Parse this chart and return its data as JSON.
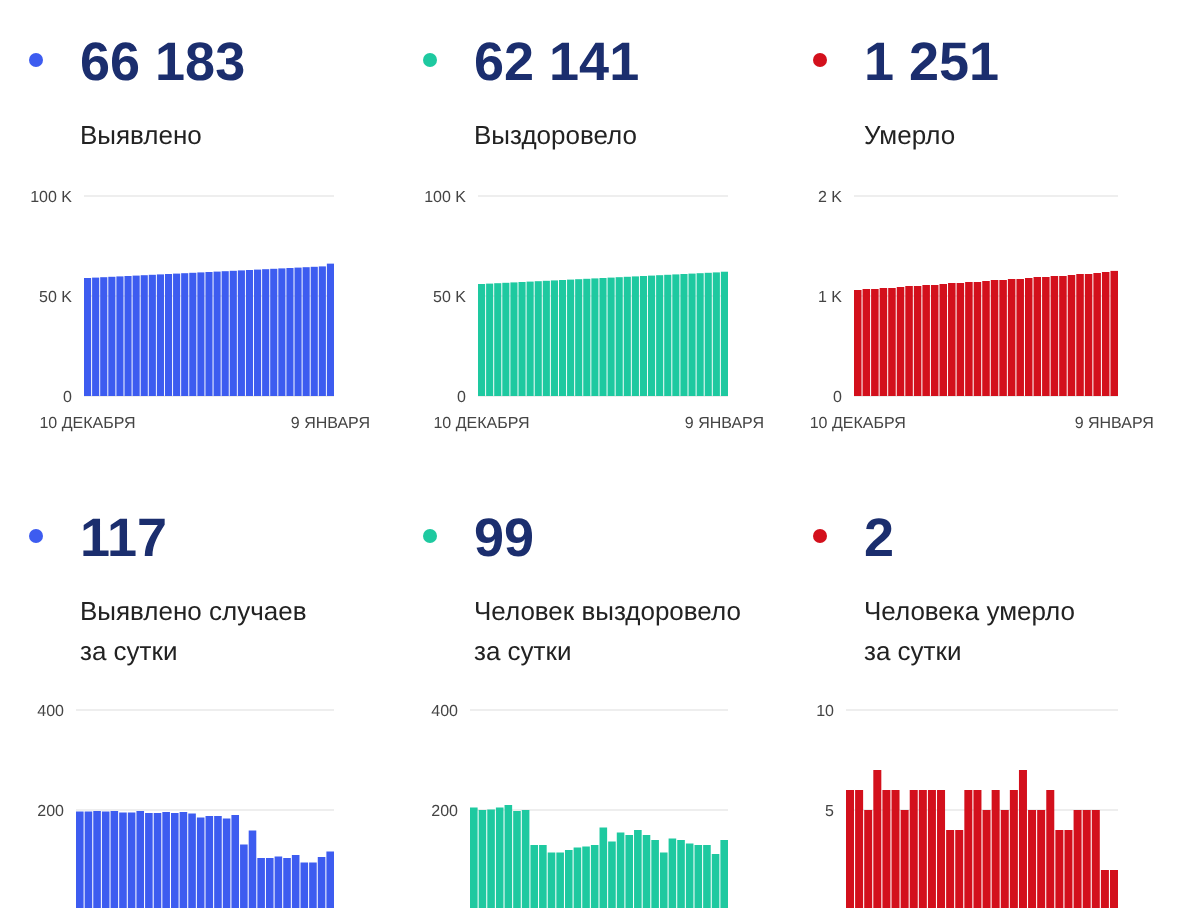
{
  "chart_data": [
    {
      "type": "bar",
      "title": "66 183",
      "subtitle": "Выявлено",
      "categories": [
        "10 ДЕКАБРЯ",
        null,
        null,
        null,
        null,
        null,
        null,
        null,
        null,
        null,
        null,
        null,
        null,
        null,
        null,
        null,
        null,
        null,
        null,
        null,
        null,
        null,
        null,
        null,
        null,
        null,
        null,
        null,
        null,
        null,
        "9 ЯНВАРЯ"
      ],
      "values": [
        59000,
        59200,
        59400,
        59600,
        59800,
        60000,
        60200,
        60400,
        60600,
        60800,
        61000,
        61200,
        61400,
        61600,
        61800,
        62000,
        62200,
        62400,
        62600,
        62800,
        63000,
        63200,
        63400,
        63600,
        63800,
        64000,
        64200,
        64400,
        64600,
        64800,
        66183
      ],
      "color": "#3d5cf0",
      "ylim": [
        0,
        100000
      ],
      "yticks": [
        0,
        {
          "value": 50000,
          "label": "50 K"
        },
        {
          "value": 100000,
          "label": "100 K"
        }
      ],
      "grid": "y"
    },
    {
      "type": "bar",
      "title": "62 141",
      "subtitle": "Выздоровело",
      "categories": [
        "10 ДЕКАБРЯ",
        null,
        null,
        null,
        null,
        null,
        null,
        null,
        null,
        null,
        null,
        null,
        null,
        null,
        null,
        null,
        null,
        null,
        null,
        null,
        null,
        null,
        null,
        null,
        null,
        null,
        null,
        null,
        null,
        null,
        "9 ЯНВАРЯ"
      ],
      "values": [
        56000,
        56200,
        56400,
        56600,
        56800,
        57000,
        57200,
        57400,
        57600,
        57800,
        58000,
        58200,
        58400,
        58600,
        58800,
        59000,
        59200,
        59400,
        59600,
        59800,
        60000,
        60200,
        60400,
        60600,
        60800,
        61000,
        61200,
        61400,
        61600,
        61800,
        62141
      ],
      "color": "#1ec9a0",
      "ylim": [
        0,
        100000
      ],
      "yticks": [
        0,
        {
          "value": 50000,
          "label": "50 K"
        },
        {
          "value": 100000,
          "label": "100 K"
        }
      ],
      "grid": "y"
    },
    {
      "type": "bar",
      "title": "1 251",
      "subtitle": "Умерло",
      "categories": [
        "10 ДЕКАБРЯ",
        null,
        null,
        null,
        null,
        null,
        null,
        null,
        null,
        null,
        null,
        null,
        null,
        null,
        null,
        null,
        null,
        null,
        null,
        null,
        null,
        null,
        null,
        null,
        null,
        null,
        null,
        null,
        null,
        null,
        "9 ЯНВАРЯ"
      ],
      "values": [
        1060,
        1070,
        1070,
        1080,
        1080,
        1090,
        1100,
        1100,
        1110,
        1110,
        1120,
        1130,
        1130,
        1140,
        1140,
        1150,
        1160,
        1160,
        1170,
        1170,
        1180,
        1190,
        1190,
        1200,
        1200,
        1210,
        1220,
        1220,
        1230,
        1240,
        1251
      ],
      "color": "#d3101c",
      "ylim": [
        0,
        2000
      ],
      "yticks": [
        0,
        {
          "value": 1000,
          "label": "1 K"
        },
        {
          "value": 2000,
          "label": "2 K"
        }
      ],
      "grid": "y"
    },
    {
      "type": "bar",
      "title": "117",
      "subtitle": "Выявлено случаев\nза сутки",
      "categories": [
        null,
        null,
        null,
        null,
        null,
        null,
        null,
        null,
        null,
        null,
        null,
        null,
        null,
        null,
        null,
        null,
        null,
        null,
        null,
        null,
        null,
        null,
        null,
        null,
        null,
        null,
        null,
        null,
        null,
        null
      ],
      "values": [
        197,
        197,
        198,
        197,
        198,
        195,
        195,
        198,
        194,
        194,
        196,
        194,
        196,
        193,
        185,
        188,
        188,
        183,
        190,
        131,
        159,
        104,
        104,
        107,
        104,
        110,
        95,
        95,
        106,
        117
      ],
      "color": "#3d5cf0",
      "ylim": [
        0,
        400
      ],
      "yticks": [
        200,
        400
      ],
      "grid": "y",
      "tick_labels": "y"
    },
    {
      "type": "bar",
      "title": "99",
      "subtitle": "Человек выздоровело\nза сутки",
      "categories": [
        null,
        null,
        null,
        null,
        null,
        null,
        null,
        null,
        null,
        null,
        null,
        null,
        null,
        null,
        null,
        null,
        null,
        null,
        null,
        null,
        null,
        null,
        null,
        null,
        null,
        null,
        null,
        null,
        null,
        null
      ],
      "values": [
        205,
        200,
        201,
        205,
        210,
        198,
        200,
        130,
        130,
        115,
        115,
        120,
        125,
        127,
        130,
        165,
        137,
        155,
        150,
        160,
        150,
        140,
        115,
        143,
        140,
        133,
        130,
        130,
        112,
        140
      ],
      "color": "#1ec9a0",
      "ylim": [
        0,
        400
      ],
      "yticks": [
        200,
        400
      ],
      "grid": "y",
      "tick_labels": "y"
    },
    {
      "type": "bar",
      "title": "2",
      "subtitle": "Человека умерло\nза сутки",
      "categories": [
        null,
        null,
        null,
        null,
        null,
        null,
        null,
        null,
        null,
        null,
        null,
        null,
        null,
        null,
        null,
        null,
        null,
        null,
        null,
        null,
        null,
        null,
        null,
        null,
        null,
        null,
        null,
        null,
        null,
        null
      ],
      "values": [
        6,
        6,
        5,
        7,
        6,
        6,
        5,
        6,
        6,
        6,
        6,
        4,
        4,
        6,
        6,
        5,
        6,
        5,
        6,
        7,
        5,
        5,
        6,
        4,
        4,
        5,
        5,
        5,
        2,
        2
      ],
      "color": "#d3101c",
      "ylim": [
        0,
        10
      ],
      "yticks": [
        5,
        10
      ],
      "grid": "y",
      "tick_labels": "y"
    }
  ]
}
